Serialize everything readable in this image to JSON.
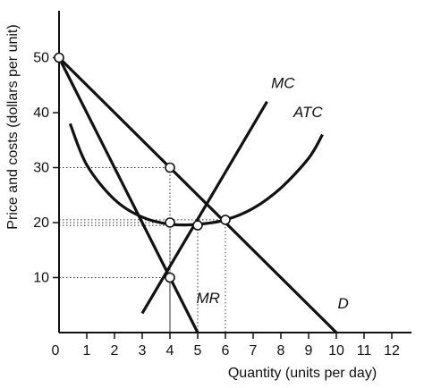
{
  "chart_data": {
    "type": "line",
    "xlabel": "Quantity (units per day)",
    "ylabel": "Price and costs (dollars per unit)",
    "xlim": [
      0,
      12
    ],
    "ylim": [
      0,
      58
    ],
    "x_ticks": [
      1,
      2,
      3,
      4,
      5,
      6,
      7,
      8,
      9,
      10,
      11,
      12
    ],
    "y_ticks": [
      10,
      20,
      30,
      40,
      50
    ],
    "origin_label": "0",
    "grid": false,
    "series": [
      {
        "name": "D",
        "x": [
          0,
          10
        ],
        "y": [
          50,
          0
        ],
        "style": "straight"
      },
      {
        "name": "MR",
        "x": [
          0,
          5
        ],
        "y": [
          50,
          0
        ],
        "style": "straight"
      },
      {
        "name": "MC",
        "x": [
          3,
          7.5
        ],
        "y": [
          3.5,
          42
        ],
        "style": "straight"
      },
      {
        "name": "ATC",
        "x": [
          0.4,
          1,
          2,
          3,
          4,
          5,
          6,
          7,
          8,
          9,
          9.5
        ],
        "y": [
          38,
          30.5,
          24.2,
          21,
          19.7,
          19.7,
          20.5,
          22.6,
          26.3,
          31.7,
          36
        ],
        "style": "smooth"
      }
    ],
    "markers": [
      {
        "x": 0,
        "y": 50
      },
      {
        "x": 4,
        "y": 30
      },
      {
        "x": 4,
        "y": 20
      },
      {
        "x": 4,
        "y": 10
      },
      {
        "x": 5,
        "y": 19.5
      },
      {
        "x": 6,
        "y": 20.5
      }
    ],
    "dotted_guides": [
      {
        "x": 4,
        "y": 30
      },
      {
        "x": 4,
        "y": 20
      },
      {
        "x": 4,
        "y": 10
      },
      {
        "x": 5,
        "y": 19.5
      },
      {
        "x": 6,
        "y": 20.5
      }
    ],
    "curve_labels": [
      {
        "series": "MC",
        "text": "MC",
        "x": 7.65,
        "y": 44.5
      },
      {
        "series": "ATC",
        "text": "ATC",
        "x": 8.45,
        "y": 39.2
      },
      {
        "series": "MR",
        "text": "MR",
        "x": 4.95,
        "y": 5.4
      },
      {
        "series": "D",
        "text": "D",
        "x": 10.05,
        "y": 4.4
      }
    ],
    "colors": {
      "line": "#111111",
      "guide": "#333333",
      "marker_fill": "#ffffff"
    }
  }
}
